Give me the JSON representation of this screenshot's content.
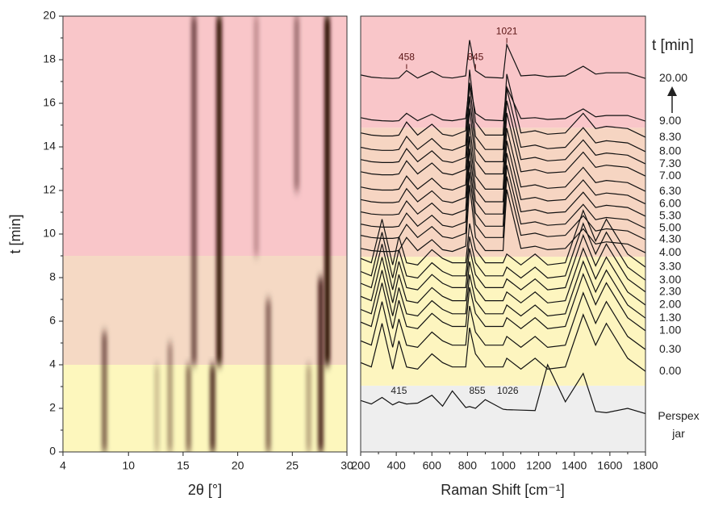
{
  "chart_data": [
    {
      "type": "heatmap",
      "xlabel": "2θ [°]",
      "ylabel": "t [min]",
      "xlim": [
        4,
        30
      ],
      "xticks": [
        4,
        10,
        15,
        20,
        25,
        30
      ],
      "ylim": [
        0,
        20
      ],
      "yticks": [
        0,
        2,
        4,
        6,
        8,
        10,
        12,
        14,
        16,
        18,
        20
      ],
      "yminorticks": [
        1,
        3,
        5,
        7,
        9,
        11,
        13,
        15,
        17,
        19
      ],
      "regions": [
        {
          "from": 0,
          "to": 4,
          "color": "#fdf7bd"
        },
        {
          "from": 4,
          "to": 9,
          "color": "#f5d9c4"
        },
        {
          "from": 9,
          "to": 20,
          "color": "#f9c6c9"
        }
      ],
      "streak_color": "#2a0805",
      "streaks": [
        {
          "x": 7.8,
          "t0": 0,
          "t1": 5.5,
          "intensity": 0.55
        },
        {
          "x": 12.6,
          "t0": 0,
          "t1": 4,
          "intensity": 0.2
        },
        {
          "x": 13.8,
          "t0": 0,
          "t1": 5,
          "intensity": 0.35
        },
        {
          "x": 15.5,
          "t0": 0,
          "t1": 4,
          "intensity": 0.5
        },
        {
          "x": 16,
          "t0": 4,
          "t1": 20,
          "intensity": 0.6
        },
        {
          "x": 17.7,
          "t0": 0,
          "t1": 4,
          "intensity": 0.75
        },
        {
          "x": 18.3,
          "t0": 4,
          "t1": 20,
          "intensity": 0.95
        },
        {
          "x": 21.7,
          "t0": 9,
          "t1": 20,
          "intensity": 0.25
        },
        {
          "x": 22.8,
          "t0": 0,
          "t1": 7,
          "intensity": 0.5
        },
        {
          "x": 25.4,
          "t0": 12,
          "t1": 20,
          "intensity": 0.4
        },
        {
          "x": 26.5,
          "t0": 0,
          "t1": 4,
          "intensity": 0.3
        },
        {
          "x": 27.6,
          "t0": 0,
          "t1": 8,
          "intensity": 0.8
        },
        {
          "x": 28.2,
          "t0": 4,
          "t1": 20,
          "intensity": 1
        }
      ]
    },
    {
      "type": "line",
      "xlabel": "Raman Shift [cm⁻¹]",
      "legend_title": "t [min]",
      "xlim": [
        200,
        1800
      ],
      "xticks": [
        200,
        400,
        600,
        800,
        1000,
        1200,
        1400,
        1600,
        1800
      ],
      "xminorticks": [
        300,
        500,
        700,
        900,
        1100,
        1300,
        1500,
        1700
      ],
      "ylim": [
        0,
        100
      ],
      "line_color": "#111111",
      "regions": [
        {
          "from": 0,
          "to": 15.2,
          "color": "#eeeeee"
        },
        {
          "from": 15.2,
          "to": 44.8,
          "color": "#fdf5bf"
        },
        {
          "from": 44.8,
          "to": 74.4,
          "color": "#f6d5c2"
        },
        {
          "from": 74.4,
          "to": 100,
          "color": "#f9c6c9"
        }
      ],
      "peak_labels_top": [
        458,
        845,
        1021
      ],
      "peak_labels_bottom": [
        415,
        855,
        1026
      ],
      "x": [
        200,
        260,
        320,
        380,
        415,
        458,
        520,
        600,
        660,
        715,
        790,
        812,
        845,
        900,
        1000,
        1021,
        1100,
        1180,
        1250,
        1350,
        1450,
        1520,
        1580,
        1700,
        1800
      ],
      "series": [
        {
          "name": "20.00",
          "values": [
            86.5,
            86,
            85.8,
            85.7,
            85.8,
            87.5,
            85.8,
            87.3,
            86,
            85.8,
            86.3,
            94.5,
            87.5,
            86,
            85.8,
            93.5,
            86.3,
            86.5,
            86.1,
            86.3,
            88.5,
            86.7,
            87,
            87,
            85.7
          ]
        },
        {
          "name": "9.00",
          "values": [
            76.7,
            76.2,
            76,
            75.9,
            76,
            77.7,
            76,
            77.5,
            76.2,
            76,
            76.5,
            84.7,
            77.7,
            76.2,
            76,
            83.7,
            76.5,
            76.7,
            76.3,
            76.5,
            78.7,
            76.9,
            77.2,
            77.2,
            75.9
          ]
        },
        {
          "name": "8.30",
          "values": [
            73.2,
            72.7,
            72.5,
            72.5,
            72.7,
            75.7,
            72.7,
            75.2,
            72.9,
            72.5,
            73.7,
            87.7,
            75.7,
            72.7,
            72.7,
            86.7,
            73.2,
            73.7,
            72.9,
            73.2,
            77.7,
            74.2,
            74.7,
            74.2,
            72.2
          ]
        },
        {
          "name": "8.00",
          "values": [
            69.9,
            69.4,
            69.2,
            69.2,
            69.4,
            72.4,
            69.4,
            71.9,
            69.6,
            69.2,
            70.4,
            84.4,
            72.4,
            69.4,
            69.4,
            83.4,
            69.9,
            70.4,
            69.6,
            69.9,
            74.4,
            70.9,
            71.4,
            70.9,
            68.9
          ]
        },
        {
          "name": "7.30",
          "values": [
            67.1,
            66.6,
            66.4,
            66.4,
            66.6,
            69.6,
            66.6,
            69.1,
            66.8,
            66.4,
            67.6,
            81.6,
            69.6,
            66.6,
            66.6,
            80.6,
            67.1,
            67.6,
            66.8,
            67.1,
            71.6,
            68.1,
            68.6,
            68.1,
            66.1
          ]
        },
        {
          "name": "7.00",
          "values": [
            64.3,
            63.8,
            63.6,
            63.6,
            63.8,
            66.8,
            63.8,
            66.3,
            64,
            63.6,
            64.8,
            78.8,
            66.8,
            63.8,
            63.8,
            77.8,
            64.3,
            64.8,
            64,
            64.3,
            68.8,
            65.3,
            65.8,
            65.3,
            63.3
          ]
        },
        {
          "name": "6.30",
          "values": [
            60.8,
            60.3,
            60.1,
            60.1,
            60.3,
            63.3,
            60.3,
            62.8,
            60.5,
            60.1,
            61.3,
            75.3,
            63.3,
            60.3,
            60.3,
            74.3,
            60.8,
            61.3,
            60.5,
            60.8,
            65.3,
            61.8,
            62.3,
            61.8,
            59.8
          ]
        },
        {
          "name": "6.00",
          "values": [
            57.9,
            57.4,
            57.2,
            57.2,
            57.4,
            60.4,
            57.4,
            59.9,
            57.6,
            57.2,
            58.4,
            72.4,
            60.4,
            57.4,
            57.4,
            71.4,
            57.9,
            58.4,
            57.6,
            57.9,
            62.4,
            58.9,
            59.4,
            58.9,
            56.9
          ]
        },
        {
          "name": "5.30",
          "values": [
            55.1,
            54.6,
            54.4,
            54.4,
            54.6,
            57.6,
            54.6,
            57.1,
            54.8,
            54.4,
            55.6,
            69.6,
            57.6,
            54.6,
            54.6,
            68.6,
            55.1,
            55.6,
            54.8,
            55.1,
            59.6,
            56.1,
            56.6,
            56.1,
            54.1
          ]
        },
        {
          "name": "5.00",
          "values": [
            52.3,
            51.8,
            51.6,
            51.6,
            51.8,
            54.8,
            51.8,
            54.3,
            52,
            51.6,
            52.8,
            66.8,
            54.8,
            51.8,
            51.8,
            65.8,
            52.3,
            52.8,
            52,
            52.3,
            56.8,
            53.3,
            53.8,
            53.3,
            51.3
          ]
        },
        {
          "name": "4.30",
          "values": [
            49.7,
            49.2,
            49,
            49,
            49.2,
            52.2,
            49.2,
            51.7,
            49.4,
            49,
            50.2,
            64.2,
            52.2,
            49.2,
            49.2,
            63.2,
            49.7,
            50.2,
            49.4,
            49.7,
            54.2,
            50.7,
            51.2,
            50.7,
            48.7
          ]
        },
        {
          "name": "4.00",
          "values": [
            46.7,
            46.2,
            46,
            46,
            46.2,
            49.2,
            46.2,
            48.7,
            46.4,
            46,
            47.2,
            61.2,
            49.2,
            46.2,
            46.2,
            60.2,
            46.7,
            47.2,
            46.4,
            46.7,
            51.2,
            47.7,
            48.2,
            47.7,
            45.7
          ]
        },
        {
          "name": "3.30",
          "values": [
            44.4,
            43.4,
            53.4,
            42.9,
            49.4,
            43.4,
            42.9,
            46.4,
            44.4,
            43.4,
            43.4,
            52.4,
            46.4,
            43.4,
            43.4,
            45.4,
            42.9,
            45.4,
            42.9,
            43.4,
            55.4,
            48.4,
            53.4,
            45.4,
            42.4
          ]
        },
        {
          "name": "3.00",
          "values": [
            41.4,
            40.4,
            50.4,
            39.9,
            46.4,
            40.4,
            39.9,
            43.4,
            41.4,
            40.4,
            40.4,
            49.4,
            43.4,
            40.4,
            40.4,
            42.4,
            39.9,
            42.4,
            39.9,
            40.4,
            52.4,
            45.4,
            50.4,
            42.4,
            39.4
          ]
        },
        {
          "name": "2.30",
          "values": [
            38.7,
            37.7,
            47.7,
            37.2,
            43.7,
            37.7,
            37.2,
            40.7,
            38.7,
            37.7,
            37.7,
            46.7,
            40.7,
            37.7,
            37.7,
            39.7,
            37.2,
            39.7,
            37.2,
            37.7,
            49.7,
            42.7,
            47.7,
            39.7,
            36.7
          ]
        },
        {
          "name": "2.00",
          "values": [
            35.7,
            34.7,
            44.7,
            34.2,
            40.7,
            34.7,
            34.2,
            37.7,
            35.7,
            34.7,
            34.7,
            43.7,
            37.7,
            34.7,
            34.7,
            36.7,
            34.2,
            36.7,
            34.2,
            34.7,
            46.7,
            39.7,
            44.7,
            36.7,
            33.7
          ]
        },
        {
          "name": "1.30",
          "values": [
            32.7,
            31.7,
            41.7,
            31.2,
            37.7,
            31.7,
            31.2,
            34.7,
            32.7,
            31.7,
            31.7,
            40.7,
            34.7,
            31.7,
            31.7,
            33.7,
            31.2,
            33.7,
            31.2,
            31.7,
            43.7,
            36.7,
            41.7,
            33.7,
            30.7
          ]
        },
        {
          "name": "1.00",
          "values": [
            29.8,
            28.8,
            38.8,
            28.3,
            34.8,
            28.8,
            28.3,
            31.8,
            29.8,
            28.8,
            28.8,
            37.8,
            31.8,
            28.8,
            28.8,
            30.8,
            28.3,
            30.8,
            28.3,
            28.8,
            40.8,
            33.8,
            38.8,
            30.8,
            27.8
          ]
        },
        {
          "name": "0.30",
          "values": [
            25.5,
            24.5,
            34.5,
            24,
            30.5,
            24.5,
            24,
            27.5,
            25.5,
            24.5,
            24.5,
            33.5,
            27.5,
            24.5,
            24.5,
            26.5,
            24,
            26.5,
            24,
            24.5,
            36.5,
            29.5,
            34.5,
            26.5,
            23.5
          ]
        },
        {
          "name": "0.00",
          "values": [
            20.5,
            19.5,
            29.5,
            19,
            25.5,
            19.5,
            19,
            22.5,
            20.5,
            19.5,
            19.5,
            28.5,
            22.5,
            19.5,
            19.5,
            21.5,
            19,
            21.5,
            19,
            19.5,
            31.5,
            24.5,
            29.5,
            21.5,
            18.5
          ]
        },
        {
          "name": "Perspex jar",
          "values": [
            11.8,
            11,
            12.5,
            10.8,
            11.5,
            11,
            11.2,
            13,
            10.5,
            14,
            10.2,
            10.4,
            10,
            12,
            9.8,
            9.7,
            9.6,
            9.5,
            20,
            11.5,
            18,
            9.3,
            9,
            10,
            8.8
          ]
        }
      ]
    }
  ]
}
